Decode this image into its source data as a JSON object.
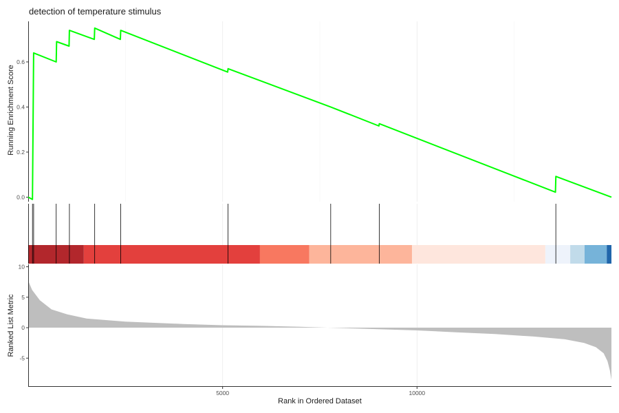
{
  "chart_data": {
    "type": "line",
    "title": "detection of temperature stimulus",
    "xlabel": "Rank in Ordered Dataset",
    "xlim": [
      0,
      15000
    ],
    "x_ticks": [
      5000,
      10000
    ],
    "x_tick_labels": [
      "5000",
      "10000"
    ],
    "panels": [
      {
        "name": "enrichment",
        "ylabel": "Running Enrichment Score",
        "ylim": [
          -0.02,
          0.78
        ],
        "y_ticks": [
          0.0,
          0.2,
          0.4,
          0.6
        ],
        "y_tick_labels": [
          "0.0",
          "0.2",
          "0.4",
          "0.6"
        ],
        "line_color": "#00ff00",
        "x": [
          0,
          110,
          140,
          720,
          730,
          1050,
          1060,
          1700,
          1710,
          2370,
          2380,
          5130,
          5140,
          7780,
          9020,
          9030,
          13560,
          13570,
          15000
        ],
        "y": [
          0.0,
          -0.01,
          0.64,
          0.6,
          0.69,
          0.67,
          0.74,
          0.7,
          0.75,
          0.7,
          0.74,
          0.555,
          0.57,
          0.4,
          0.316,
          0.326,
          0.022,
          0.092,
          0.0
        ]
      },
      {
        "name": "hits",
        "hit_positions": [
          110,
          140,
          720,
          1060,
          1710,
          2380,
          5140,
          7780,
          9030,
          13570
        ],
        "color_band": [
          {
            "from": 0,
            "to": 1430,
            "color": "#b2272c"
          },
          {
            "from": 1430,
            "to": 5960,
            "color": "#e3403d"
          },
          {
            "from": 5960,
            "to": 7230,
            "color": "#f87860"
          },
          {
            "from": 7230,
            "to": 9870,
            "color": "#fdb59b"
          },
          {
            "from": 9870,
            "to": 13300,
            "color": "#fee6dd"
          },
          {
            "from": 13300,
            "to": 13940,
            "color": "#eef3fb"
          },
          {
            "from": 13940,
            "to": 14310,
            "color": "#c1dbea"
          },
          {
            "from": 14310,
            "to": 14880,
            "color": "#76b3d9"
          },
          {
            "from": 14880,
            "to": 15000,
            "color": "#2066ab"
          }
        ]
      },
      {
        "name": "ranked_metric",
        "ylabel": "Ranked List Metric",
        "ylim": [
          -9.6,
          10.4
        ],
        "y_ticks": [
          -5,
          0,
          5,
          10
        ],
        "y_tick_labels": [
          "-5",
          "0",
          "5",
          "10"
        ],
        "fill_color": "#bebebe",
        "x": [
          0,
          100,
          300,
          600,
          1000,
          1500,
          2500,
          4000,
          5000,
          6000,
          7000,
          7700,
          8500,
          10000,
          11000,
          12000,
          13000,
          13800,
          14300,
          14600,
          14800,
          14900,
          14960,
          15000
        ],
        "y": [
          7.7,
          6.2,
          4.5,
          3.0,
          2.2,
          1.5,
          1.0,
          0.6,
          0.4,
          0.3,
          0.15,
          0.0,
          -0.15,
          -0.45,
          -0.75,
          -1.05,
          -1.45,
          -1.9,
          -2.5,
          -3.2,
          -4.2,
          -5.5,
          -7.0,
          -8.6
        ]
      }
    ]
  }
}
